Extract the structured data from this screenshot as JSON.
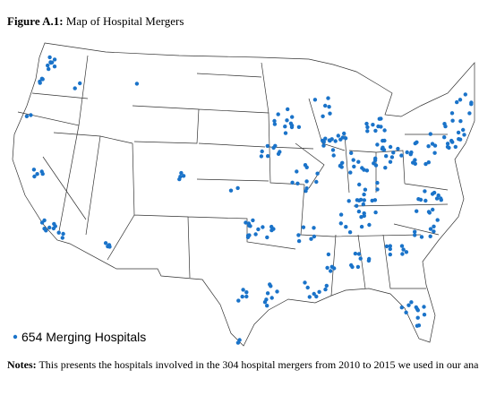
{
  "figure": {
    "label": "Figure A.1:",
    "title": "Map of Hospital Mergers"
  },
  "legend": {
    "label": "654 Merging Hospitals"
  },
  "notes": {
    "label": "Notes:",
    "text": "This presents the hospitals involved in the 304 hospital mergers from 2010 to 2015 we used in our ana"
  }
}
